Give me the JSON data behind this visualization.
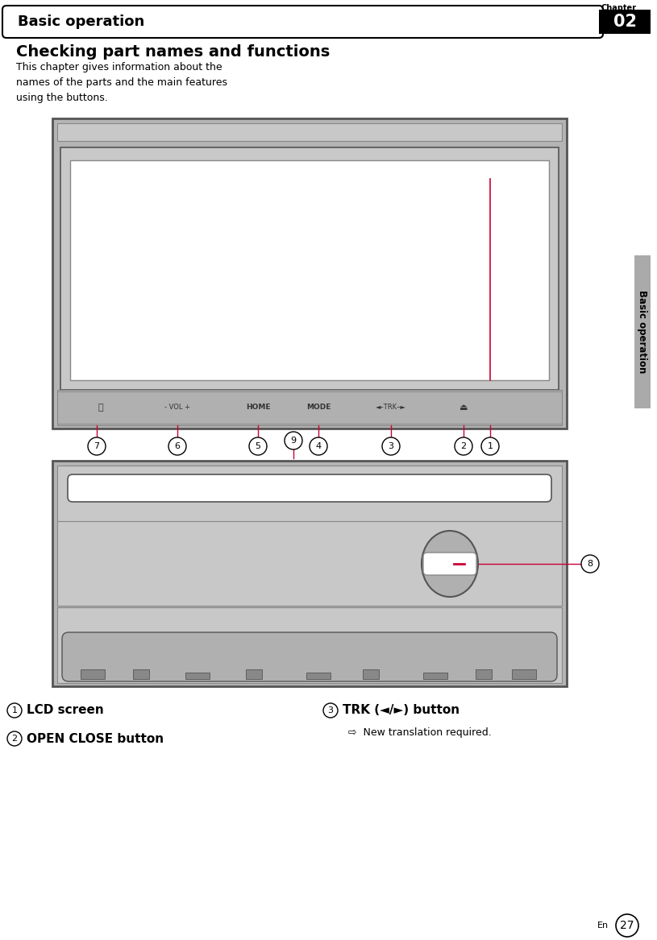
{
  "page_width": 8.15,
  "page_height": 11.67,
  "bg_color": "#ffffff",
  "header_text": "Basic operation",
  "chapter_label": "Chapter",
  "chapter_number": "02",
  "title": "Checking part names and functions",
  "description": "This chapter gives information about the\nnames of the parts and the main features\nusing the buttons.",
  "sidebar_text": "Basic operation",
  "item1_text": "LCD screen",
  "item2_text": "OPEN CLOSE button",
  "item3_text": "TRK (◄/►) button",
  "item3_sub": "⇨  New translation required.",
  "page_num": "27",
  "page_lang": "En",
  "callout_color": "#cc0033",
  "gray_outer": "#b4b4b4",
  "gray_mid": "#c8c8c8",
  "gray_inner": "#d8d8d8",
  "gray_ctrl": "#b0b0b0",
  "gray_dark": "#888888",
  "gray_darkest": "#555555"
}
